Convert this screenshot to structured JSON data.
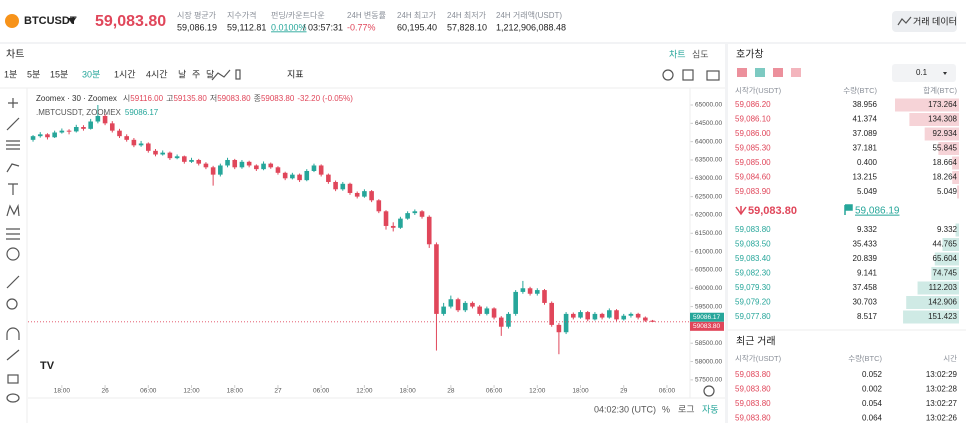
{
  "header": {
    "symbol": "BTCUSDT",
    "price": "59,083.80",
    "stats": [
      {
        "label": "시장 평균가",
        "value": "59,086.19"
      },
      {
        "label": "지수가격",
        "value": "59,112.81"
      },
      {
        "label": "펀딩/카운트다운",
        "value": "0.0100%",
        "countdown": "/ 03:57:31"
      },
      {
        "label": "24H 변동률",
        "value": "-0.77%"
      },
      {
        "label": "24H 최고가",
        "value": "60,195.40"
      },
      {
        "label": "24H 최저가",
        "value": "57,828.10"
      },
      {
        "label": "24H 거래액(USDT)",
        "value": "1,212,906,088.48"
      }
    ],
    "button": "거래 데이터"
  },
  "chart_panel": {
    "title": "차트",
    "tabs": [
      "차트",
      "심도"
    ],
    "intervals": [
      "1분",
      "5분",
      "15분",
      "30분",
      "1시간",
      "4시간",
      "날",
      "주",
      "달"
    ],
    "active_interval": 3,
    "indicator": "지표",
    "footer": {
      "time": "04:02:30 (UTC)",
      "options": [
        "%",
        "로그",
        "자동"
      ]
    }
  },
  "chart_data": {
    "type": "candlestick",
    "legend": {
      "source": "Zoomex · 30 · Zoomex",
      "ohlc": [
        {
          "label": "시",
          "value": "59116.00"
        },
        {
          "label": "고",
          "value": "59135.80"
        },
        {
          "label": "저",
          "value": "59083.80"
        },
        {
          "label": "종",
          "value": "59083.80"
        }
      ],
      "change": "-32.20 (-0.05%)",
      "index_name": ".MBTCUSDT, ZOOMEX",
      "index_value": "59086.17"
    },
    "up_color": "#26a69a",
    "down_color": "#e0465a",
    "grid": false,
    "xlim": [
      -4.7,
      87.2
    ],
    "xticks": [
      {
        "value": 0,
        "label": "18:00"
      },
      {
        "value": 6,
        "label": "26"
      },
      {
        "value": 12,
        "label": "06:00"
      },
      {
        "value": 18,
        "label": "12:00"
      },
      {
        "value": 24,
        "label": "18:00"
      },
      {
        "value": 30,
        "label": "27"
      },
      {
        "value": 36,
        "label": "06:00"
      },
      {
        "value": 42,
        "label": "12:00"
      },
      {
        "value": 48,
        "label": "18:00"
      },
      {
        "value": 54,
        "label": "28"
      },
      {
        "value": 60,
        "label": "06:00"
      },
      {
        "value": 66,
        "label": "12:00"
      },
      {
        "value": 72,
        "label": "18:00"
      },
      {
        "value": 78,
        "label": "29"
      },
      {
        "value": 84,
        "label": "06:00"
      }
    ],
    "ylim": [
      57360,
      65355
    ],
    "yticks": [
      {
        "value": 65000,
        "label": "65000.00"
      },
      {
        "value": 64500,
        "label": "64500.00"
      },
      {
        "value": 64000,
        "label": "64000.00"
      },
      {
        "value": 63500,
        "label": "63500.00"
      },
      {
        "value": 63000,
        "label": "63000.00"
      },
      {
        "value": 62500,
        "label": "62500.00"
      },
      {
        "value": 62000,
        "label": "62000.00"
      },
      {
        "value": 61500,
        "label": "61500.00"
      },
      {
        "value": 61000,
        "label": "61000.00"
      },
      {
        "value": 60500,
        "label": "60500.00"
      },
      {
        "value": 60000,
        "label": "60000.00"
      },
      {
        "value": 59500,
        "label": "59500.00"
      },
      {
        "value": 59000,
        "label": "59000.00"
      },
      {
        "value": 58500,
        "label": "58500.00"
      },
      {
        "value": 58000,
        "label": "58000.00"
      },
      {
        "value": 57500,
        "label": "57500.00"
      }
    ],
    "price_tags": [
      {
        "value": 59086.17,
        "label": "59086.17",
        "color": "#26a69a"
      },
      {
        "value": 59083.8,
        "label": "59083.80",
        "color": "#e0465a"
      }
    ],
    "candles": [
      [
        -4,
        64050,
        64180,
        64000,
        64150
      ],
      [
        -3,
        64150,
        64260,
        64110,
        64200
      ],
      [
        -2,
        64200,
        64230,
        64060,
        64120
      ],
      [
        -1,
        64120,
        64300,
        64100,
        64250
      ],
      [
        0,
        64250,
        64360,
        64220,
        64300
      ],
      [
        1,
        64300,
        64340,
        64200,
        64280
      ],
      [
        2,
        64280,
        64460,
        64250,
        64400
      ],
      [
        3,
        64400,
        64450,
        64300,
        64350
      ],
      [
        4,
        64350,
        64620,
        64330,
        64550
      ],
      [
        5,
        64550,
        65000,
        64500,
        64700
      ],
      [
        6,
        64700,
        64760,
        64450,
        64500
      ],
      [
        7,
        64500,
        64560,
        64250,
        64300
      ],
      [
        8,
        64300,
        64350,
        64100,
        64150
      ],
      [
        9,
        64150,
        64200,
        64000,
        64050
      ],
      [
        10,
        64050,
        64100,
        63850,
        63900
      ],
      [
        11,
        63900,
        64020,
        63860,
        63950
      ],
      [
        12,
        63950,
        63980,
        63700,
        63750
      ],
      [
        13,
        63750,
        63800,
        63600,
        63650
      ],
      [
        14,
        63650,
        63760,
        63620,
        63700
      ],
      [
        15,
        63700,
        63730,
        63500,
        63550
      ],
      [
        16,
        63550,
        63650,
        63520,
        63600
      ],
      [
        17,
        63600,
        63620,
        63400,
        63450
      ],
      [
        18,
        63450,
        63560,
        63420,
        63500
      ],
      [
        19,
        63500,
        63530,
        63350,
        63400
      ],
      [
        20,
        63400,
        63440,
        63250,
        63300
      ],
      [
        21,
        63300,
        63340,
        62800,
        63100
      ],
      [
        22,
        63100,
        63400,
        63050,
        63350
      ],
      [
        23,
        63350,
        63560,
        63300,
        63500
      ],
      [
        24,
        63500,
        63530,
        63250,
        63300
      ],
      [
        25,
        63300,
        63500,
        63260,
        63450
      ],
      [
        26,
        63450,
        63480,
        63300,
        63350
      ],
      [
        27,
        63350,
        63380,
        63200,
        63250
      ],
      [
        28,
        63250,
        63460,
        63220,
        63400
      ],
      [
        29,
        63400,
        63430,
        63260,
        63300
      ],
      [
        30,
        63300,
        63330,
        63100,
        63150
      ],
      [
        31,
        63150,
        63180,
        62950,
        63000
      ],
      [
        32,
        63000,
        63150,
        62970,
        63100
      ],
      [
        33,
        63100,
        63130,
        62900,
        62950
      ],
      [
        34,
        62950,
        63250,
        62920,
        63200
      ],
      [
        35,
        63200,
        63400,
        63170,
        63350
      ],
      [
        36,
        63350,
        63380,
        63050,
        63100
      ],
      [
        37,
        63100,
        63130,
        62850,
        62900
      ],
      [
        38,
        62900,
        62940,
        62650,
        62700
      ],
      [
        39,
        62700,
        62900,
        62660,
        62850
      ],
      [
        40,
        62850,
        62880,
        62550,
        62600
      ],
      [
        41,
        62600,
        62640,
        62450,
        62500
      ],
      [
        42,
        62500,
        62700,
        62470,
        62650
      ],
      [
        43,
        62650,
        62680,
        62350,
        62400
      ],
      [
        44,
        62400,
        62430,
        62050,
        62100
      ],
      [
        45,
        62100,
        62130,
        61600,
        61700
      ],
      [
        46,
        61700,
        61800,
        61550,
        61650
      ],
      [
        47,
        61650,
        61950,
        61620,
        61900
      ],
      [
        48,
        61900,
        62100,
        61870,
        62050
      ],
      [
        49,
        62050,
        62150,
        62000,
        62100
      ],
      [
        50,
        62100,
        62130,
        61900,
        61950
      ],
      [
        51,
        61950,
        61990,
        61100,
        61200
      ],
      [
        52,
        61200,
        61250,
        58300,
        59300
      ],
      [
        53,
        59300,
        59600,
        59250,
        59500
      ],
      [
        54,
        59500,
        59800,
        59450,
        59700
      ],
      [
        55,
        59700,
        59740,
        59350,
        59400
      ],
      [
        56,
        59400,
        59650,
        59350,
        59600
      ],
      [
        57,
        59600,
        59640,
        59450,
        59500
      ],
      [
        58,
        59500,
        59540,
        59250,
        59300
      ],
      [
        59,
        59300,
        59500,
        59260,
        59450
      ],
      [
        60,
        59450,
        59480,
        59150,
        59200
      ],
      [
        61,
        59200,
        59240,
        58700,
        58950
      ],
      [
        62,
        58950,
        59350,
        58900,
        59300
      ],
      [
        63,
        59300,
        59950,
        59250,
        59900
      ],
      [
        64,
        59900,
        60200,
        59850,
        60000
      ],
      [
        65,
        60000,
        60040,
        59800,
        59850
      ],
      [
        66,
        59850,
        60000,
        59800,
        59950
      ],
      [
        67,
        59950,
        59980,
        59550,
        59600
      ],
      [
        68,
        59600,
        59640,
        58950,
        59000
      ],
      [
        69,
        59000,
        59050,
        58200,
        58800
      ],
      [
        70,
        58800,
        59350,
        58750,
        59300
      ],
      [
        71,
        59300,
        59340,
        59150,
        59200
      ],
      [
        72,
        59200,
        59400,
        59170,
        59350
      ],
      [
        73,
        59350,
        59380,
        59100,
        59150
      ],
      [
        74,
        59150,
        59350,
        59120,
        59300
      ],
      [
        75,
        59300,
        59330,
        59150,
        59200
      ],
      [
        76,
        59200,
        59450,
        59170,
        59400
      ],
      [
        77,
        59400,
        59430,
        59100,
        59150
      ],
      [
        78,
        59150,
        59300,
        59120,
        59250
      ],
      [
        79,
        59250,
        59340,
        59200,
        59300
      ],
      [
        80,
        59300,
        59330,
        59150,
        59200
      ],
      [
        81,
        59200,
        59230,
        59080,
        59116
      ],
      [
        82,
        59116,
        59135.8,
        59083.8,
        59083.8
      ]
    ]
  },
  "orderbook": {
    "title": "호가창",
    "step": "0.1",
    "headers": [
      "시작가(USDT)",
      "수량(BTC)",
      "합계(BTC)"
    ],
    "asks": [
      {
        "price": "59,086.20",
        "qty": "38.956",
        "total": 173.264
      },
      {
        "price": "59,086.10",
        "qty": "41.374",
        "total": 134.308
      },
      {
        "price": "59,086.00",
        "qty": "37.089",
        "total": 92.934
      },
      {
        "price": "59,085.30",
        "qty": "37.181",
        "total": 55.845
      },
      {
        "price": "59,085.00",
        "qty": "0.400",
        "total": 18.664
      },
      {
        "price": "59,084.60",
        "qty": "13.215",
        "total": 18.264
      },
      {
        "price": "59,083.90",
        "qty": "5.049",
        "total": 5.049
      }
    ],
    "last_price": "59,083.80",
    "mark_price": "59,086.19",
    "bids": [
      {
        "price": "59,083.80",
        "qty": "9.332",
        "total": 9.332
      },
      {
        "price": "59,083.50",
        "qty": "35.433",
        "total": 44.765
      },
      {
        "price": "59,083.40",
        "qty": "20.839",
        "total": 65.604
      },
      {
        "price": "59,082.30",
        "qty": "9.141",
        "total": 74.745
      },
      {
        "price": "59,079.30",
        "qty": "37.458",
        "total": 112.203
      },
      {
        "price": "59,079.20",
        "qty": "30.703",
        "total": 142.906
      },
      {
        "price": "59,077.80",
        "qty": "8.517",
        "total": 151.423
      }
    ]
  },
  "trades": {
    "title": "최근 거래",
    "headers": [
      "시작가(USDT)",
      "수량(BTC)",
      "시간"
    ],
    "rows": [
      {
        "price": "59,083.80",
        "qty": "0.052",
        "time": "13:02:29"
      },
      {
        "price": "59,083.80",
        "qty": "0.002",
        "time": "13:02:28"
      },
      {
        "price": "59,083.80",
        "qty": "0.054",
        "time": "13:02:27"
      },
      {
        "price": "59,083.80",
        "qty": "0.064",
        "time": "13:02:26"
      }
    ]
  }
}
